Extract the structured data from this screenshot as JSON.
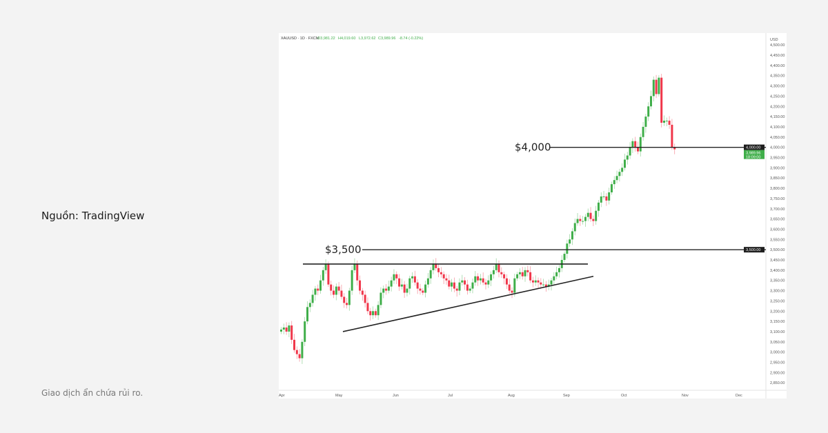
{
  "page": {
    "source_label": "Nguồn: TradingView",
    "risk_label": "Giao dịch ẩn chứa rủi ro."
  },
  "chart_data": {
    "type": "candlestick",
    "header": {
      "symbol": "XAUUSD · 1D · FXCM",
      "open": "O3,981.22",
      "high": "H4,019.60",
      "low": "L3,972.62",
      "close": "C3,989.96",
      "change": "-8.74 (-0.22%)"
    },
    "currency_label": "USD",
    "ylim": [
      2825,
      4525
    ],
    "y_ticks": [
      "4,500.00",
      "4,450.00",
      "4,400.00",
      "4,350.00",
      "4,300.00",
      "4,250.00",
      "4,200.00",
      "4,150.00",
      "4,100.00",
      "4,050.00",
      "4,000.00",
      "3,950.00",
      "3,900.00",
      "3,850.00",
      "3,800.00",
      "3,750.00",
      "3,700.00",
      "3,650.00",
      "3,600.00",
      "3,550.00",
      "3,500.00",
      "3,450.00",
      "3,400.00",
      "3,350.00",
      "3,300.00",
      "3,250.00",
      "3,200.00",
      "3,150.00",
      "3,100.00",
      "3,050.00",
      "3,000.00",
      "2,950.00",
      "2,900.00",
      "2,850.00"
    ],
    "x_ticks": [
      "Apr",
      "May",
      "Jun",
      "Jul",
      "Aug",
      "Sep",
      "Oct",
      "Nov",
      "Dec"
    ],
    "first_open": 3100,
    "closes": [
      3110,
      3120,
      3100,
      3130,
      3060,
      3010,
      2990,
      2970,
      3050,
      3150,
      3220,
      3240,
      3280,
      3310,
      3300,
      3350,
      3400,
      3430,
      3330,
      3300,
      3280,
      3320,
      3300,
      3270,
      3240,
      3230,
      3300,
      3400,
      3430,
      3350,
      3300,
      3280,
      3240,
      3200,
      3180,
      3200,
      3180,
      3230,
      3290,
      3310,
      3300,
      3320,
      3350,
      3380,
      3360,
      3320,
      3330,
      3290,
      3310,
      3360,
      3370,
      3340,
      3310,
      3300,
      3290,
      3330,
      3360,
      3400,
      3430,
      3410,
      3390,
      3380,
      3360,
      3350,
      3320,
      3340,
      3310,
      3300,
      3340,
      3350,
      3330,
      3300,
      3310,
      3340,
      3370,
      3350,
      3360,
      3340,
      3330,
      3350,
      3380,
      3400,
      3430,
      3390,
      3380,
      3360,
      3330,
      3300,
      3290,
      3360,
      3380,
      3390,
      3370,
      3400,
      3390,
      3350,
      3340,
      3350,
      3340,
      3330,
      3330,
      3320,
      3330,
      3350,
      3370,
      3390,
      3410,
      3450,
      3480,
      3530,
      3550,
      3590,
      3630,
      3650,
      3640,
      3640,
      3660,
      3680,
      3650,
      3640,
      3690,
      3730,
      3760,
      3760,
      3740,
      3780,
      3820,
      3840,
      3860,
      3880,
      3900,
      3940,
      3960,
      4000,
      4030,
      4000,
      3980,
      4050,
      4100,
      4150,
      4200,
      4250,
      4330,
      4260,
      4340,
      4120,
      4130,
      4130,
      4110,
      4000,
      3990
    ],
    "levels": [
      {
        "label": "$3,500",
        "price": 3500,
        "badge": "3,500.00"
      },
      {
        "label": "$4,000",
        "price": 4000,
        "badge": "4,000.00"
      }
    ],
    "last_price_badge": {
      "price": "3,989.96",
      "countdown": "18:09:00"
    },
    "resistance_price": 3430,
    "support_line": {
      "from": 3100,
      "to": 3370
    },
    "colors": {
      "up": "#3fae49",
      "down": "#f0364a",
      "line": "#222222",
      "last": "#3fae49"
    }
  }
}
